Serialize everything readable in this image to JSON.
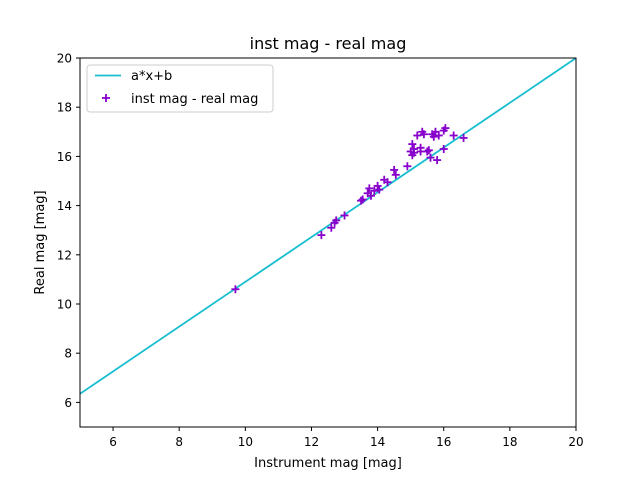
{
  "chart_data": {
    "type": "scatter",
    "title": "inst mag - real mag",
    "xlabel": "Instrument mag [mag]",
    "ylabel": "Real mag [mag]",
    "xlim": [
      5,
      20
    ],
    "ylim": [
      5,
      20
    ],
    "xticks": [
      6,
      8,
      10,
      12,
      14,
      16,
      18,
      20
    ],
    "yticks": [
      6,
      8,
      10,
      12,
      14,
      16,
      18,
      20
    ],
    "grid": false,
    "legend_position": "upper-left",
    "series": [
      {
        "name": "a*x+b",
        "kind": "line",
        "color": "#17becf",
        "x": [
          5,
          20
        ],
        "y": [
          6.35,
          20.0
        ]
      },
      {
        "name": "inst mag - real mag",
        "kind": "scatter",
        "marker": "+",
        "color": "#8800cc",
        "x": [
          9.7,
          12.3,
          12.6,
          12.7,
          12.75,
          13.0,
          13.5,
          13.55,
          13.7,
          13.75,
          13.8,
          13.9,
          14.0,
          14.05,
          14.2,
          14.3,
          14.5,
          14.55,
          14.9,
          15.0,
          15.05,
          15.05,
          15.1,
          15.1,
          15.2,
          15.3,
          15.3,
          15.35,
          15.4,
          15.5,
          15.55,
          15.6,
          15.65,
          15.7,
          15.75,
          15.8,
          15.85,
          16.0,
          16.0,
          16.05,
          16.3,
          16.6
        ],
        "y": [
          10.6,
          12.8,
          13.1,
          13.3,
          13.4,
          13.6,
          14.2,
          14.25,
          14.5,
          14.7,
          14.4,
          14.6,
          14.8,
          14.65,
          15.05,
          14.95,
          15.45,
          15.25,
          15.6,
          16.2,
          16.5,
          16.05,
          16.3,
          16.15,
          16.85,
          16.35,
          16.2,
          17.0,
          16.9,
          16.2,
          16.25,
          15.95,
          16.9,
          16.8,
          17.0,
          15.85,
          16.85,
          17.05,
          16.3,
          17.15,
          16.85,
          16.75
        ]
      }
    ]
  }
}
